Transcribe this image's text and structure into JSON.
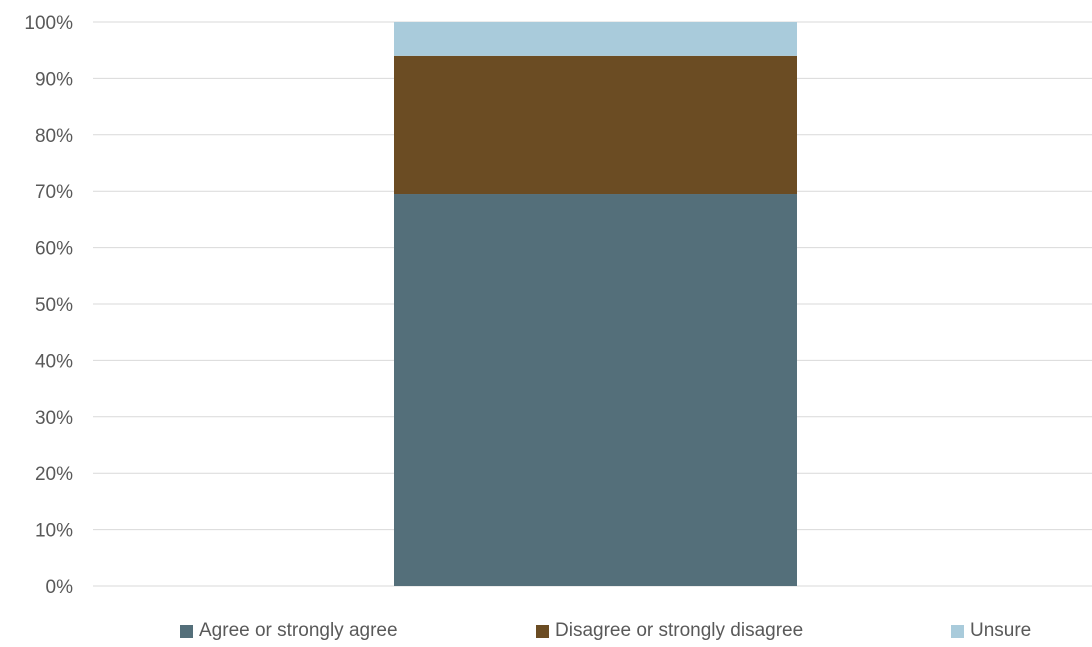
{
  "chart_data": {
    "type": "bar",
    "stacked": true,
    "percent_axis": true,
    "categories": [
      ""
    ],
    "series": [
      {
        "name": "Agree or strongly agree",
        "values": [
          69.5
        ],
        "color": "#546f7a"
      },
      {
        "name": "Disagree or strongly disagree",
        "values": [
          24.5
        ],
        "color": "#6b4c23"
      },
      {
        "name": "Unsure",
        "values": [
          6.0
        ],
        "color": "#a9cbdb"
      }
    ],
    "ylim": [
      0,
      100
    ],
    "yticks": [
      "0%",
      "10%",
      "20%",
      "30%",
      "40%",
      "50%",
      "60%",
      "70%",
      "80%",
      "90%",
      "100%"
    ],
    "grid": true,
    "legend_position": "bottom"
  }
}
